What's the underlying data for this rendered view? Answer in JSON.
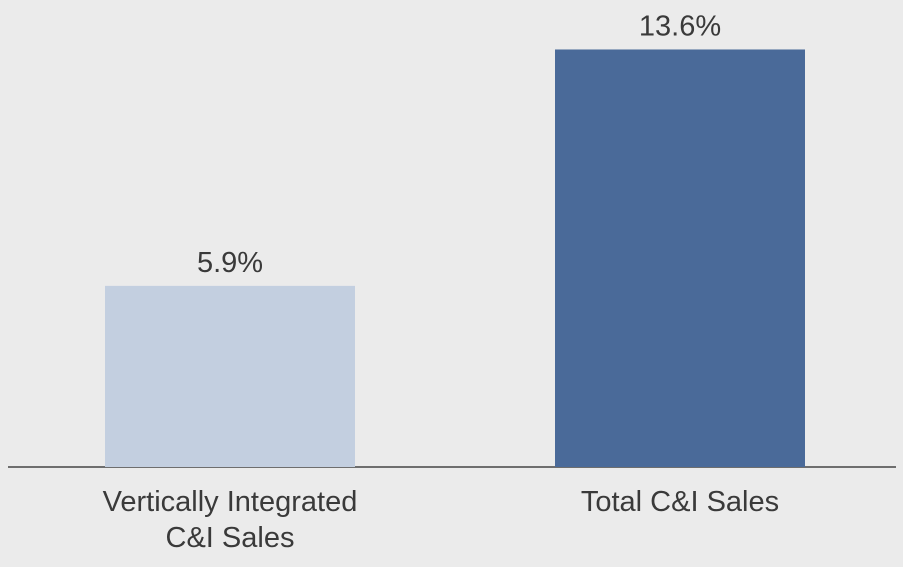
{
  "chart_data": {
    "type": "bar",
    "categories": [
      "Vertically Integrated C&I Sales",
      "Total C&I Sales"
    ],
    "values": [
      5.9,
      13.6
    ],
    "value_labels": [
      "5.9%",
      "13.6%"
    ],
    "colors": [
      "#c3cfe0",
      "#4a6a99"
    ]
  }
}
